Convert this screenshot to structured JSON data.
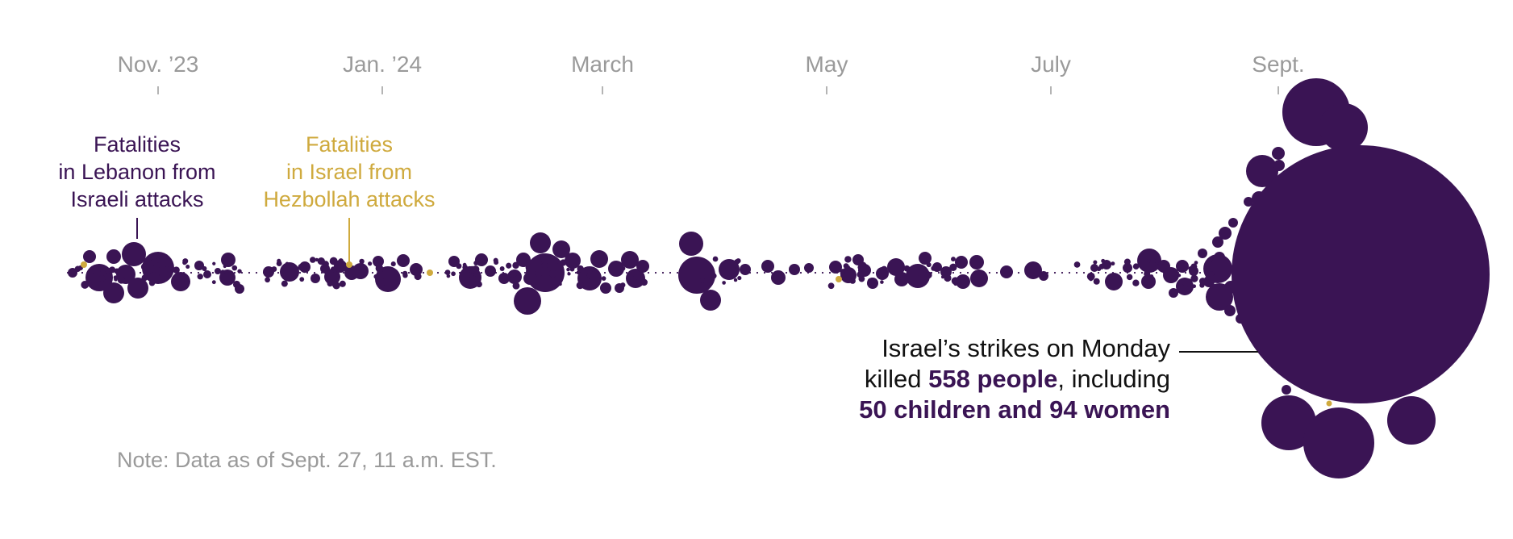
{
  "colors": {
    "lebanon": "#3a1454",
    "israel": "#cfaa3e",
    "axis_text": "#9a9a9a",
    "annotation_text": "#111111"
  },
  "chart_data": {
    "type": "scatter",
    "encoding": "beeswarm timeline of fatality events; circle area proportional to deaths",
    "x_axis": {
      "tick_labels": [
        "Nov. ’23",
        "Jan. ’24",
        "March",
        "May",
        "July",
        "Sept."
      ]
    },
    "series": [
      {
        "name": "Fatalities in Lebanon from Israeli attacks"
      },
      {
        "name": "Fatalities in Israel from Hezbollah attacks"
      }
    ],
    "legend_labels": {
      "lebanon": [
        "Fatalities",
        "in Lebanon from",
        "Israeli attacks"
      ],
      "israel": [
        "Fatalities",
        "in Israel from",
        "Hezbollah attacks"
      ]
    },
    "annotation": {
      "line1": "Israel’s strikes on Monday",
      "line2_pre": "killed ",
      "line2_bold": "558 people",
      "line2_post": ", including",
      "line3_bold": "50 children and 94 women"
    },
    "highlight_event": {
      "label": "Monday",
      "deaths": 558,
      "children": 50,
      "women": 94
    },
    "note": "Note: Data as of Sept. 27, 11 a.m. EST."
  }
}
